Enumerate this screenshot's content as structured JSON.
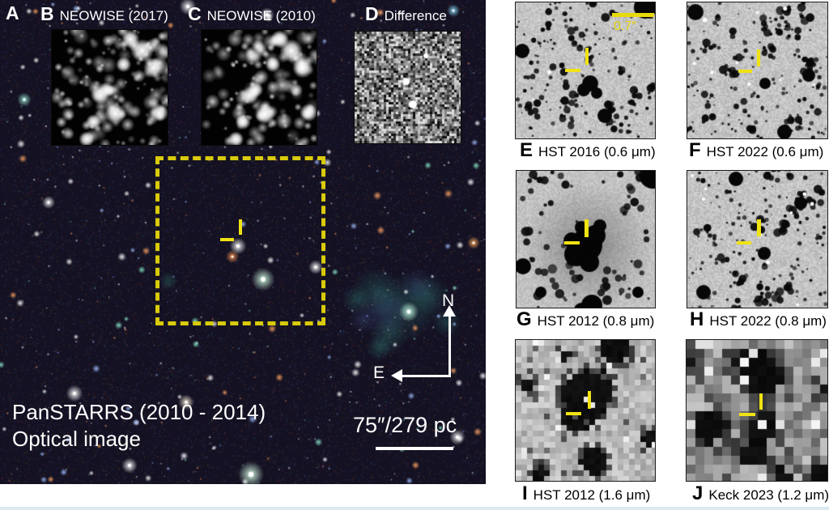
{
  "main_image": {
    "label": "A",
    "survey_line1": "PanSTARRS (2010 - 2014)",
    "survey_line2": "Optical image",
    "scale_bar_label": "75″/279 pc",
    "compass_north": "N",
    "compass_east": "E"
  },
  "insets": [
    {
      "id": "b",
      "label": "B",
      "title": "NEOWISE (2017)"
    },
    {
      "id": "c",
      "label": "C",
      "title": "NEOWISE (2010)"
    },
    {
      "id": "d",
      "label": "D",
      "title": "Difference"
    }
  ],
  "cutouts": [
    {
      "id": "e",
      "label": "E",
      "title": "HST 2016 (0.6 μm)",
      "scale_bar_label": "0.7″"
    },
    {
      "id": "f",
      "label": "F",
      "title": "HST 2022 (0.6 μm)"
    },
    {
      "id": "g",
      "label": "G",
      "title": "HST 2012 (0.8 μm)"
    },
    {
      "id": "h",
      "label": "H",
      "title": "HST 2022 (0.8 μm)"
    },
    {
      "id": "i",
      "label": "I",
      "title": "HST 2012 (1.6 μm)"
    },
    {
      "id": "j",
      "label": "J",
      "title": "Keck 2023 (1.2 μm)"
    }
  ],
  "colors": {
    "annotation_yellow": "#e8d90c",
    "text_white": "#ffffff",
    "label_black": "#000000"
  }
}
